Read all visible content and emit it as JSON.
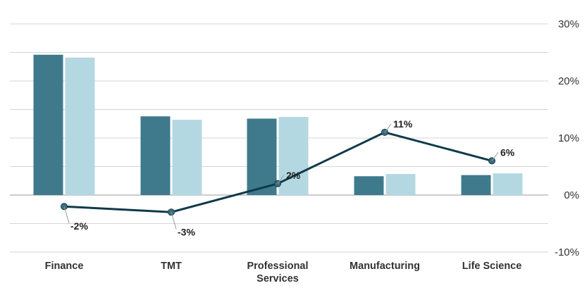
{
  "chart_data": {
    "type": "bar",
    "categories": [
      "Finance",
      "TMT",
      "Professional Services",
      "Manufacturing",
      "Life Science"
    ],
    "category_lines": [
      [
        "Finance"
      ],
      [
        "TMT"
      ],
      [
        "Professional",
        "Services"
      ],
      [
        "Manufacturing"
      ],
      [
        "Life Science"
      ]
    ],
    "series": [
      {
        "type": "bar",
        "values": [
          24.6,
          13.8,
          13.4,
          3.3,
          3.5
        ],
        "color": "#3e7a8c"
      },
      {
        "type": "bar",
        "values": [
          24.1,
          13.2,
          13.7,
          3.7,
          3.8
        ],
        "color": "#b3d8e1"
      },
      {
        "type": "line",
        "values": [
          -2,
          -3,
          2,
          11,
          6
        ],
        "labels": [
          "-2%",
          "-3%",
          "2%",
          "11%",
          "6%"
        ],
        "color": "#0f3a4a"
      }
    ],
    "y_axis": {
      "side": "right",
      "min": -10,
      "max": 30,
      "ticks": [
        30,
        20,
        10,
        0,
        -10
      ],
      "tick_labels": [
        "30%",
        "20%",
        "10%",
        "0%",
        "-10%"
      ],
      "minor_gridlines": [
        25,
        15,
        5,
        -5
      ]
    },
    "title": "",
    "xlabel": "",
    "ylabel": "",
    "grid": true,
    "legend": "none"
  }
}
